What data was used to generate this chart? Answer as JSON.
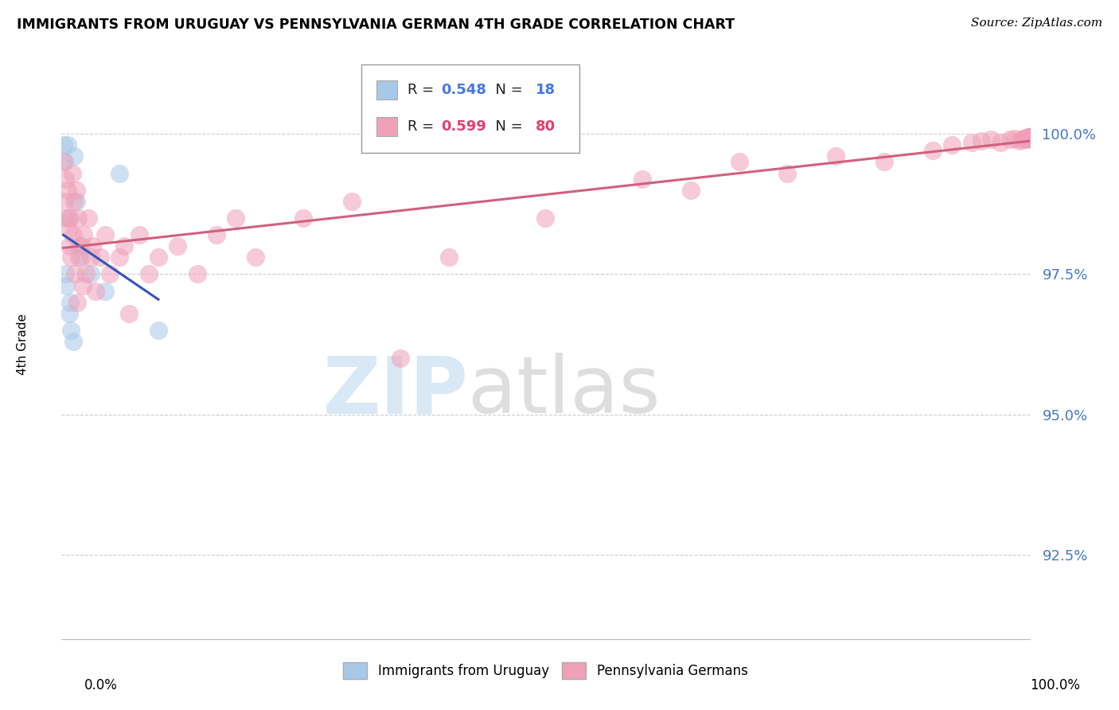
{
  "title": "IMMIGRANTS FROM URUGUAY VS PENNSYLVANIA GERMAN 4TH GRADE CORRELATION CHART",
  "source": "Source: ZipAtlas.com",
  "ylabel": "4th Grade",
  "ytick_values": [
    92.5,
    95.0,
    97.5,
    100.0
  ],
  "xlim": [
    0.0,
    100.0
  ],
  "ylim": [
    91.0,
    101.5
  ],
  "blue_color": "#a8c8e8",
  "pink_color": "#f0a0b8",
  "blue_line_color": "#3355bb",
  "pink_line_color": "#d06080",
  "blue_R": "0.548",
  "blue_N": "18",
  "pink_R": "0.599",
  "pink_N": "80",
  "blue_scatter_x": [
    0.2,
    0.3,
    0.4,
    0.5,
    0.6,
    0.7,
    0.8,
    0.9,
    1.0,
    1.2,
    1.3,
    1.5,
    1.8,
    2.0,
    3.0,
    4.5,
    6.0,
    10.0
  ],
  "blue_scatter_y": [
    99.8,
    99.5,
    97.5,
    97.3,
    99.8,
    98.5,
    96.8,
    97.0,
    96.5,
    96.3,
    99.6,
    98.8,
    98.0,
    97.8,
    97.5,
    97.2,
    99.3,
    96.5
  ],
  "pink_scatter_x": [
    0.2,
    0.3,
    0.4,
    0.5,
    0.6,
    0.7,
    0.8,
    0.9,
    1.0,
    1.1,
    1.2,
    1.3,
    1.4,
    1.5,
    1.6,
    1.7,
    1.8,
    2.0,
    2.2,
    2.3,
    2.5,
    2.8,
    3.0,
    3.2,
    3.5,
    4.0,
    4.5,
    5.0,
    6.0,
    6.5,
    7.0,
    8.0,
    9.0,
    10.0,
    12.0,
    14.0,
    16.0,
    18.0,
    20.0,
    25.0,
    30.0,
    35.0,
    40.0,
    50.0,
    60.0,
    65.0,
    70.0,
    75.0,
    80.0,
    85.0,
    90.0,
    92.0,
    94.0,
    95.0,
    96.0,
    97.0,
    98.0,
    98.5,
    99.0,
    99.2,
    99.5,
    99.6,
    99.7,
    99.8,
    99.9,
    99.92,
    99.95,
    99.97,
    99.98,
    99.99,
    100.0,
    100.0,
    100.0,
    100.0,
    100.0,
    100.0,
    100.0,
    100.0,
    100.0,
    100.0
  ],
  "pink_scatter_y": [
    99.5,
    98.8,
    99.2,
    98.5,
    99.0,
    98.3,
    98.0,
    98.5,
    97.8,
    99.3,
    98.2,
    98.8,
    97.5,
    99.0,
    97.0,
    98.5,
    97.8,
    98.0,
    97.3,
    98.2,
    97.5,
    98.5,
    97.8,
    98.0,
    97.2,
    97.8,
    98.2,
    97.5,
    97.8,
    98.0,
    96.8,
    98.2,
    97.5,
    97.8,
    98.0,
    97.5,
    98.2,
    98.5,
    97.8,
    98.5,
    98.8,
    96.0,
    97.8,
    98.5,
    99.2,
    99.0,
    99.5,
    99.3,
    99.6,
    99.5,
    99.7,
    99.8,
    99.85,
    99.88,
    99.9,
    99.85,
    99.9,
    99.92,
    99.88,
    99.9,
    99.92,
    99.93,
    99.91,
    99.92,
    99.93,
    99.92,
    99.93,
    99.92,
    99.93,
    99.94,
    99.93,
    99.94,
    99.93,
    99.94,
    99.93,
    99.94,
    99.95,
    99.95,
    99.95,
    99.95
  ]
}
